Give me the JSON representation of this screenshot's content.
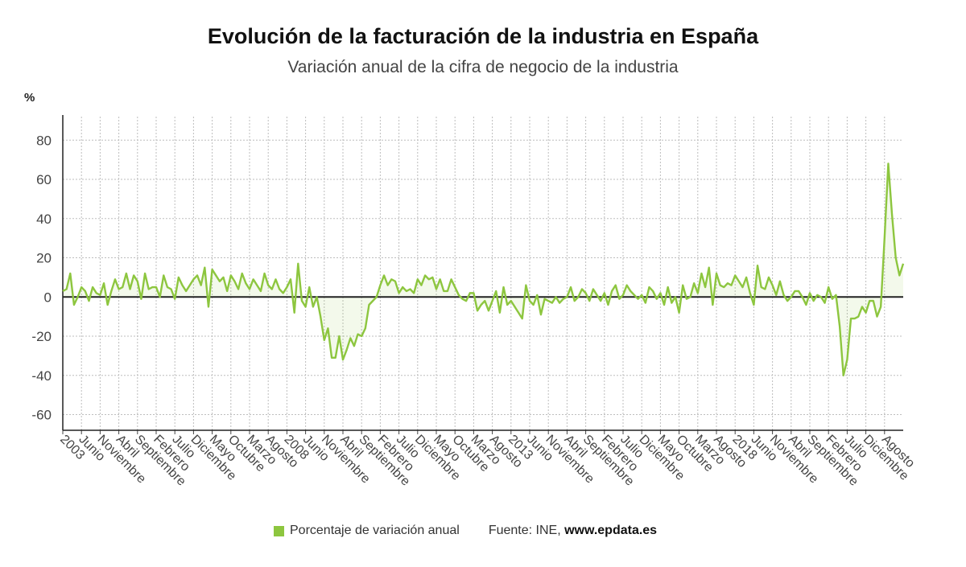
{
  "chart_data": {
    "type": "area",
    "title": "Evolución de la facturación de la industria en España",
    "subtitle": "Variación anual de la cifra de negocio de la industria",
    "ylabel": "%",
    "ylim": [
      -68,
      92
    ],
    "yticks": [
      -60,
      -40,
      -20,
      0,
      20,
      40,
      60,
      80
    ],
    "start": "2003-01",
    "xtick_labels": [
      "2003",
      "Junio",
      "Noviembre",
      "Abril",
      "Septiembre",
      "Febrero",
      "Julio",
      "Diciembre",
      "Mayo",
      "Octubre",
      "Marzo",
      "Agosto",
      "2008",
      "Junio",
      "Noviembre",
      "Abril",
      "Septiembre",
      "Febrero",
      "Julio",
      "Diciembre",
      "Mayo",
      "Octubre",
      "Marzo",
      "Agosto",
      "2013",
      "Junio",
      "Noviembre",
      "Abril",
      "Septiembre",
      "Febrero",
      "Julio",
      "Diciembre",
      "Mayo",
      "Octubre",
      "Marzo",
      "Agosto",
      "2018",
      "Junio",
      "Noviembre",
      "Abril",
      "Septiembre",
      "Febrero",
      "Julio",
      "Diciembre",
      "Agosto"
    ],
    "grid": true,
    "series": [
      {
        "name": "Porcentaje de variación anual",
        "color": "#8dc63f",
        "values": [
          3,
          4,
          12,
          -4,
          0,
          5,
          3,
          -2,
          5,
          2,
          1,
          7,
          -4,
          3,
          9,
          4,
          5,
          12,
          4,
          11,
          8,
          -1,
          12,
          4,
          5,
          5,
          0,
          11,
          5,
          4,
          -1,
          10,
          6,
          3,
          6,
          9,
          11,
          6,
          15,
          -5,
          14,
          11,
          8,
          10,
          3,
          11,
          8,
          4,
          12,
          7,
          4,
          9,
          6,
          3,
          12,
          6,
          4,
          9,
          4,
          2,
          5,
          9,
          -8,
          17,
          -2,
          -5,
          5,
          -5,
          0,
          -10,
          -22,
          -16,
          -31,
          -31,
          -20,
          -32,
          -27,
          -21,
          -25,
          -19,
          -20,
          -16,
          -4,
          -2,
          0,
          6,
          11,
          6,
          9,
          8,
          2,
          5,
          3,
          4,
          2,
          9,
          6,
          11,
          9,
          10,
          4,
          9,
          3,
          3,
          9,
          5,
          1,
          -1,
          -2,
          2,
          2,
          -7,
          -4,
          -2,
          -7,
          -2,
          3,
          -8,
          5,
          -4,
          -2,
          -5,
          -8,
          -11,
          6,
          -2,
          -4,
          1,
          -9,
          -1,
          -2,
          -3,
          0,
          -3,
          -1,
          0,
          5,
          -2,
          0,
          4,
          2,
          -2,
          4,
          1,
          -2,
          2,
          -4,
          3,
          6,
          -1,
          1,
          6,
          3,
          1,
          -1,
          1,
          -3,
          5,
          3,
          -1,
          2,
          -4,
          5,
          -3,
          0,
          -8,
          6,
          -1,
          0,
          7,
          2,
          12,
          5,
          15,
          -4,
          12,
          6,
          5,
          7,
          6,
          11,
          8,
          5,
          10,
          2,
          -4,
          16,
          5,
          4,
          10,
          6,
          1,
          8,
          1,
          -2,
          0,
          3,
          3,
          0,
          -4,
          2,
          -2,
          1,
          0,
          -3,
          5,
          -1,
          1,
          -15,
          -40,
          -32,
          -11,
          -11,
          -10,
          -5,
          -8,
          -2,
          -2,
          -10,
          -5,
          30,
          68,
          42,
          20,
          11,
          17
        ]
      }
    ]
  },
  "legend": {
    "label": "Porcentaje de variación anual"
  },
  "source": {
    "prefix": "Fuente: INE, ",
    "site": "www.epdata.es"
  },
  "colors": {
    "line": "#8dc63f",
    "fill": "rgba(141,198,63,0.10)",
    "zero": "#222222",
    "grid": "#bdbdbd"
  }
}
